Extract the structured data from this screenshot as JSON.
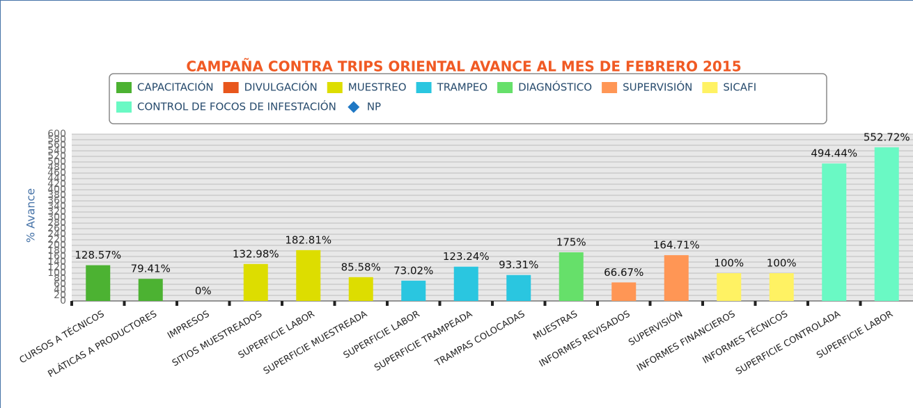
{
  "chart_data": {
    "type": "bar",
    "title": "CAMPAÑA CONTRA TRIPS ORIENTAL AVANCE AL MES DE FEBRERO 2015",
    "y_label": "% Avance",
    "categories": [
      "CURSOS A TÉCNICOS",
      "PLÁTICAS A PRODUCTORES",
      "IMPRESOS",
      "SITIOS MUESTREADOS",
      "SUPERFICIE LABOR",
      "SUPERFICIE MUESTREADA",
      "SUPERFICIE LABOR",
      "SUPERFICIE TRAMPEADA",
      "TRAMPAS COLOCADAS",
      "MUESTRAS",
      "INFORMES REVISADOS",
      "SUPERVISIÓN",
      "INFORMES FINANCIEROS",
      "INFORMES TÉCNICOS",
      "SUPERFICIE CONTROLADA",
      "SUPERFICIE LABOR"
    ],
    "series": [
      {
        "name": "CAPACITACIÓN",
        "color": "#4cb232",
        "values": [
          128.57,
          79.41,
          null,
          null,
          null,
          null,
          null,
          null,
          null,
          null,
          null,
          null,
          null,
          null,
          null,
          null
        ],
        "value_labels": [
          "128.57%",
          "79.41%",
          null,
          null,
          null,
          null,
          null,
          null,
          null,
          null,
          null,
          null,
          null,
          null,
          null,
          null
        ]
      },
      {
        "name": "DIVULGACIÓN",
        "color": "#e8561c",
        "values": [
          null,
          null,
          0,
          null,
          null,
          null,
          null,
          null,
          null,
          null,
          null,
          null,
          null,
          null,
          null,
          null
        ],
        "value_labels": [
          null,
          null,
          "0%",
          null,
          null,
          null,
          null,
          null,
          null,
          null,
          null,
          null,
          null,
          null,
          null,
          null
        ]
      },
      {
        "name": "MUESTREO",
        "color": "#dddd00",
        "values": [
          null,
          null,
          null,
          132.98,
          182.81,
          85.58,
          null,
          null,
          null,
          null,
          null,
          null,
          null,
          null,
          null,
          null
        ],
        "value_labels": [
          null,
          null,
          null,
          "132.98%",
          "182.81%",
          "85.58%",
          null,
          null,
          null,
          null,
          null,
          null,
          null,
          null,
          null,
          null
        ]
      },
      {
        "name": "TRAMPEO",
        "color": "#2ac6e0",
        "values": [
          null,
          null,
          null,
          null,
          null,
          null,
          73.02,
          123.24,
          93.31,
          null,
          null,
          null,
          null,
          null,
          null,
          null
        ],
        "value_labels": [
          null,
          null,
          null,
          null,
          null,
          null,
          "73.02%",
          "123.24%",
          "93.31%",
          null,
          null,
          null,
          null,
          null,
          null,
          null
        ]
      },
      {
        "name": "DIAGNÓSTICO",
        "color": "#66e06a",
        "values": [
          null,
          null,
          null,
          null,
          null,
          null,
          null,
          null,
          null,
          175,
          null,
          null,
          null,
          null,
          null,
          null
        ],
        "value_labels": [
          null,
          null,
          null,
          null,
          null,
          null,
          null,
          null,
          null,
          "175%",
          null,
          null,
          null,
          null,
          null,
          null
        ]
      },
      {
        "name": "SUPERVISIÓN",
        "color": "#ff9655",
        "values": [
          null,
          null,
          null,
          null,
          null,
          null,
          null,
          null,
          null,
          null,
          66.67,
          164.71,
          null,
          null,
          null,
          null
        ],
        "value_labels": [
          null,
          null,
          null,
          null,
          null,
          null,
          null,
          null,
          null,
          null,
          "66.67%",
          "164.71%",
          null,
          null,
          null,
          null
        ]
      },
      {
        "name": "SICAFI",
        "color": "#fff263",
        "values": [
          null,
          null,
          null,
          null,
          null,
          null,
          null,
          null,
          null,
          null,
          null,
          null,
          100,
          100,
          null,
          null
        ],
        "value_labels": [
          null,
          null,
          null,
          null,
          null,
          null,
          null,
          null,
          null,
          null,
          null,
          null,
          "100%",
          "100%",
          null,
          null
        ]
      },
      {
        "name": "CONTROL DE FOCOS DE INFESTACIÓN",
        "color": "#6af9c4",
        "values": [
          null,
          null,
          null,
          null,
          null,
          null,
          null,
          null,
          null,
          null,
          null,
          null,
          null,
          null,
          494.44,
          552.72
        ],
        "value_labels": [
          null,
          null,
          null,
          null,
          null,
          null,
          null,
          null,
          null,
          null,
          null,
          null,
          null,
          null,
          "494.44%",
          "552.72%"
        ]
      },
      {
        "name": "NP",
        "color": "#1f78c4",
        "marker": "diamond",
        "values": [
          null,
          null,
          null,
          null,
          null,
          null,
          null,
          null,
          null,
          null,
          null,
          null,
          null,
          null,
          null,
          null
        ]
      }
    ],
    "ylim": [
      0,
      600
    ],
    "yticks": [
      0,
      20,
      40,
      60,
      80,
      100,
      120,
      140,
      160,
      180,
      200,
      220,
      240,
      260,
      280,
      300,
      320,
      340,
      360,
      380,
      400,
      420,
      440,
      460,
      480,
      500,
      520,
      540,
      560,
      580,
      600
    ],
    "grid": true
  }
}
